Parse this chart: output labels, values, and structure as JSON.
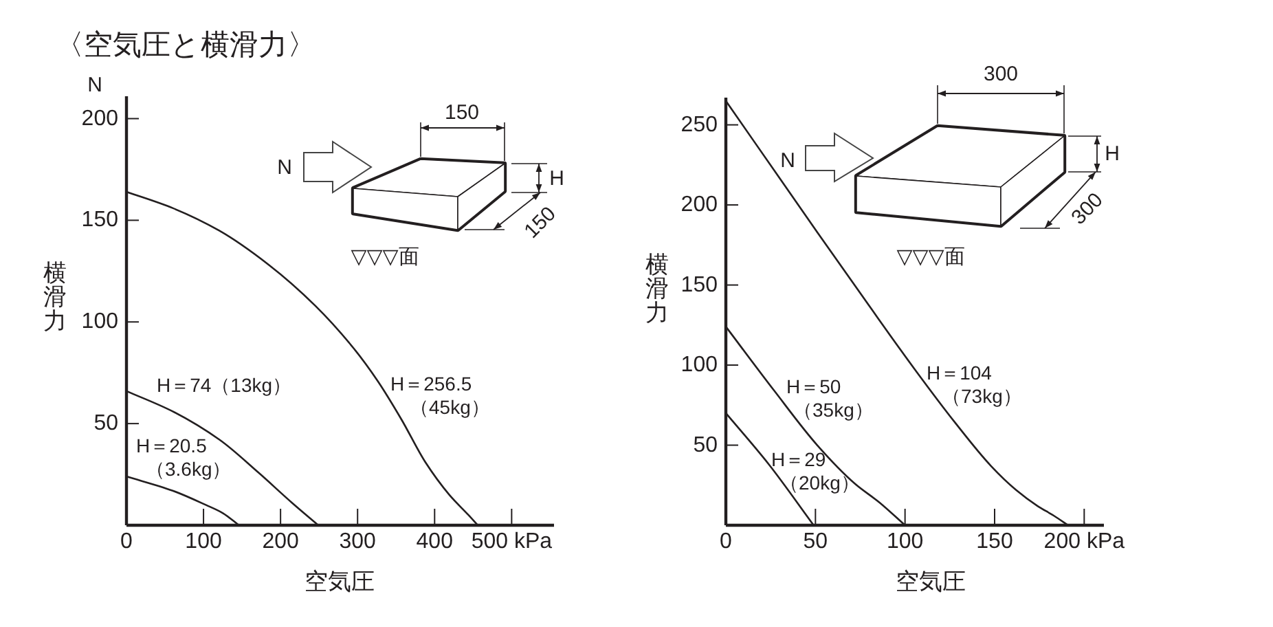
{
  "chart_data": [
    {
      "type": "line",
      "title": "〈空気圧と横滑力〉",
      "xlabel": "空気圧",
      "ylabel": "横滑力",
      "xlim": [
        0,
        555
      ],
      "ylim": [
        0,
        211
      ],
      "xticks": [
        0,
        100,
        200,
        300,
        400,
        {
          "value": 500,
          "label": "500 kPa"
        }
      ],
      "yticks": [
        50,
        100,
        150,
        200
      ],
      "series": [
        {
          "name": "H＝20.5\n（3.6kg）",
          "color": "#231f20",
          "x": [
            0,
            60,
            103,
            125,
            146
          ],
          "values": [
            24,
            17,
            10,
            6,
            0
          ]
        },
        {
          "name": "H＝74（13kg）",
          "color": "#231f20",
          "x": [
            0,
            60,
            121,
            171,
            215,
            249
          ],
          "values": [
            66,
            56,
            42,
            26,
            11,
            0
          ]
        },
        {
          "name": "H＝256.5\n（45kg）",
          "color": "#231f20",
          "x": [
            0,
            60,
            120,
            185,
            245,
            295,
            326,
            357,
            388,
            419,
            444,
            456
          ],
          "values": [
            164,
            156,
            145,
            128,
            108,
            87,
            71,
            52,
            31,
            15,
            5,
            0
          ]
        }
      ],
      "annotations": [
        "N",
        "N",
        "150",
        "H",
        "150",
        "▽▽▽面"
      ]
    },
    {
      "type": "line",
      "xlabel": "空気圧",
      "ylabel": "横滑力",
      "xlim": [
        0,
        211
      ],
      "ylim": [
        0,
        267
      ],
      "xticks": [
        0,
        50,
        100,
        150,
        {
          "value": 200,
          "label": "200 kPa"
        }
      ],
      "yticks": [
        50,
        100,
        150,
        200,
        250
      ],
      "series": [
        {
          "name": "H＝29\n（20kg）",
          "color": "#231f20",
          "x": [
            0,
            24,
            49
          ],
          "values": [
            70,
            38,
            0
          ]
        },
        {
          "name": "H＝50\n（35kg）",
          "color": "#231f20",
          "x": [
            0,
            27,
            51,
            72,
            86,
            100
          ],
          "values": [
            124,
            84,
            50,
            26,
            14,
            0
          ]
        },
        {
          "name": "H＝104\n（73kg）",
          "color": "#231f20",
          "x": [
            0,
            51,
            80,
            105,
            128,
            148,
            162,
            174,
            183,
            191
          ],
          "values": [
            265,
            183,
            137,
            98,
            64,
            37,
            22,
            12,
            6,
            0
          ]
        }
      ],
      "annotations": [
        "N",
        "300",
        "H",
        "300",
        "▽▽▽面"
      ]
    }
  ]
}
